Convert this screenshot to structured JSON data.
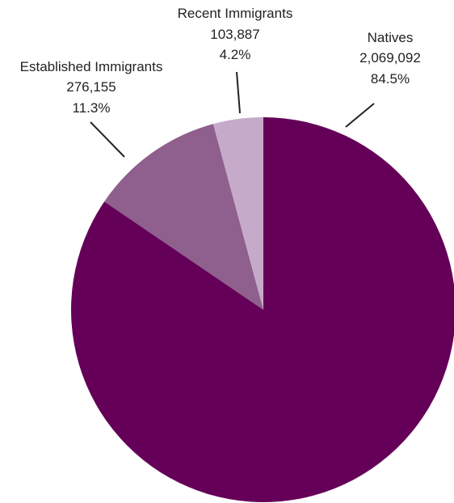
{
  "chart_data": {
    "type": "pie",
    "start": "top",
    "direction": "clockwise",
    "slices": [
      {
        "label": "Natives",
        "count": "2,069,092",
        "percent": "84.5%",
        "value": 84.5,
        "color": "#650058"
      },
      {
        "label": "Established Immigrants",
        "count": "276,155",
        "percent": "11.3%",
        "value": 11.3,
        "color": "#8f5f8d"
      },
      {
        "label": "Recent Immigrants",
        "count": "103,887",
        "percent": "4.2%",
        "value": 4.2,
        "color": "#c6aac9"
      }
    ]
  }
}
